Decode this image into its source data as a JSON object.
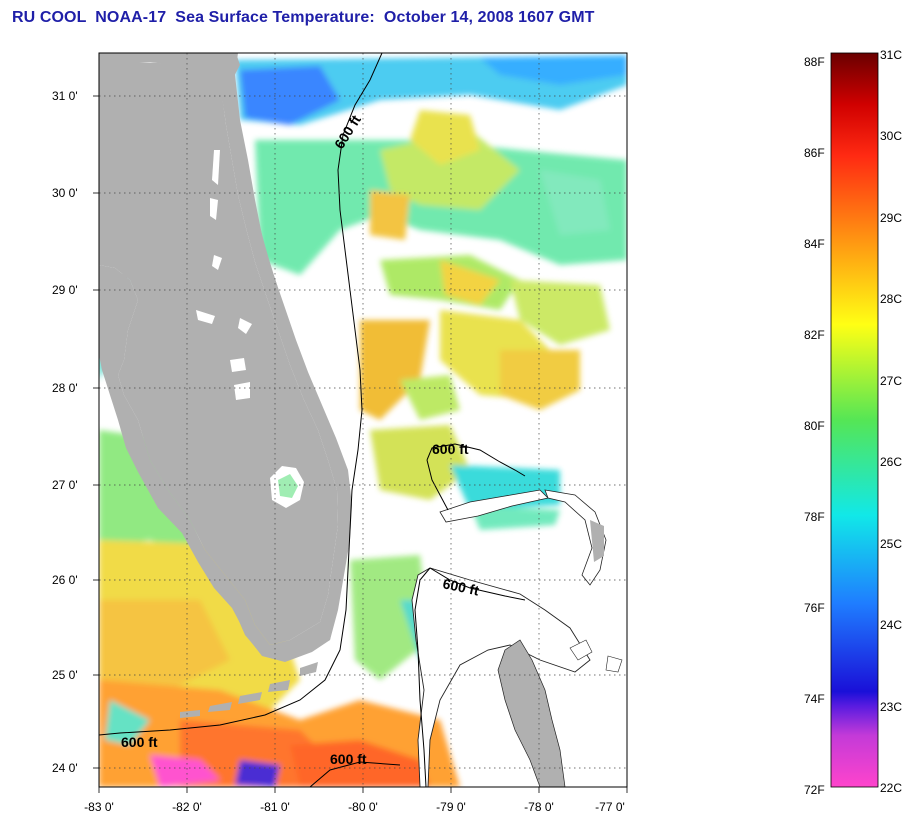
{
  "title": "RU COOL  NOAA-17  Sea Surface Temperature:  October 14, 2008 1607 GMT",
  "map": {
    "lon_range": [
      -83,
      -77
    ],
    "lat_range": [
      23.9,
      31.4
    ],
    "x_ticks": [
      "-83 0'",
      "-82 0'",
      "-81 0'",
      "-80 0'",
      "-79 0'",
      "-78 0'",
      "-77 0'"
    ],
    "y_ticks": [
      "24 0'",
      "25 0'",
      "26 0'",
      "27 0'",
      "28 0'",
      "29 0'",
      "30 0'",
      "31 0'"
    ],
    "isobath_labels": [
      "600 ft",
      "600 ft",
      "600 ft",
      "600 ft",
      "600 ft"
    ],
    "land_color": "#b0b0b0",
    "grid": "dotted"
  },
  "colorbar": {
    "fahrenheit_labels": [
      "88F",
      "86F",
      "84F",
      "82F",
      "80F",
      "78F",
      "76F",
      "74F",
      "72F"
    ],
    "celsius_labels": [
      "31C",
      "30C",
      "29C",
      "28C",
      "27C",
      "26C",
      "25C",
      "24C",
      "23C",
      "22C"
    ],
    "celsius_range": [
      22,
      31
    ],
    "colors": [
      "#ff44cc",
      "#9a2bd8",
      "#1a10d8",
      "#1f7dff",
      "#11e8e8",
      "#55e655",
      "#ffff14",
      "#ff9a12",
      "#ff2a12",
      "#7a0000"
    ]
  }
}
